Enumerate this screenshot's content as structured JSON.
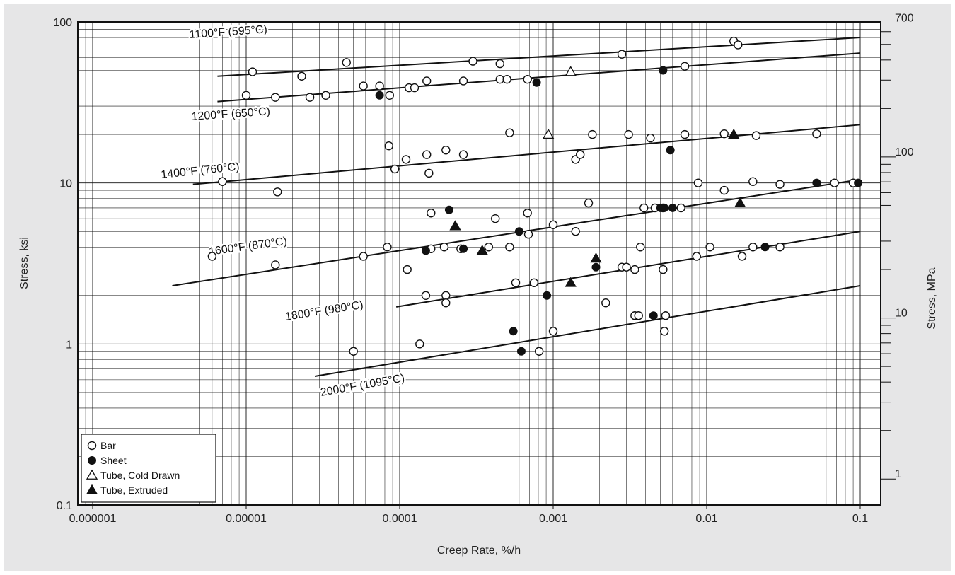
{
  "chart_data": {
    "type": "scatter",
    "xlabel": "Creep Rate, %/h",
    "ylabel": "Stress, ksi",
    "ylabel_right": "Stress, MPa",
    "x_scale": "log",
    "y_scale": "log",
    "xlim": [
      1e-06,
      0.12
    ],
    "ylim": [
      0.1,
      100
    ],
    "x_ticks": [
      {
        "value": 1e-06,
        "label": "0.000001"
      },
      {
        "value": 1e-05,
        "label": "0.00001"
      },
      {
        "value": 0.0001,
        "label": "0.0001"
      },
      {
        "value": 0.001,
        "label": "0.001"
      },
      {
        "value": 0.01,
        "label": "0.01"
      },
      {
        "value": 0.1,
        "label": "0.1"
      }
    ],
    "y_ticks": [
      {
        "value": 0.1,
        "label": "0.1"
      },
      {
        "value": 1,
        "label": "1"
      },
      {
        "value": 10,
        "label": "10"
      },
      {
        "value": 100,
        "label": "100"
      }
    ],
    "y_right_ticks": [
      {
        "value": 1,
        "label": "1"
      },
      {
        "value": 10,
        "label": "10"
      },
      {
        "value": 100,
        "label": "100"
      },
      {
        "value": 700,
        "label": "700"
      }
    ],
    "grid": true,
    "legend_position": "bottom-left",
    "legend": [
      {
        "label": "Bar",
        "marker": "open-circle"
      },
      {
        "label": "Sheet",
        "marker": "filled-circle"
      },
      {
        "label": "Tube, Cold Drawn",
        "marker": "open-triangle"
      },
      {
        "label": "Tube, Extruded",
        "marker": "filled-triangle"
      }
    ],
    "curves": [
      {
        "label": "1100°F (595°C)",
        "x": [
          6.5e-06,
          0.1
        ],
        "y": [
          46,
          80
        ]
      },
      {
        "label": "1200°F (650°C)",
        "x": [
          6.5e-06,
          0.1
        ],
        "y": [
          32,
          64
        ]
      },
      {
        "label": "1400°F (760°C)",
        "x": [
          4.5e-06,
          0.1
        ],
        "y": [
          9.8,
          23
        ]
      },
      {
        "label": "1600°F (870°C)",
        "x": [
          3.3e-06,
          0.1
        ],
        "y": [
          2.3,
          10.5
        ]
      },
      {
        "label": "1800°F (980°C)",
        "x": [
          9.5e-05,
          0.1
        ],
        "y": [
          1.7,
          5
        ]
      },
      {
        "label": "2000°F (1095°C)",
        "x": [
          2.8e-05,
          0.1
        ],
        "y": [
          0.63,
          2.3
        ]
      }
    ],
    "series": [
      {
        "name": "Bar",
        "marker": "open-circle",
        "x": [
          1.1e-05,
          2.3e-05,
          4.5e-05,
          0.0003,
          0.00045,
          0.0028,
          0.015,
          0.016,
          1e-05,
          1.55e-05,
          2.6e-05,
          3.3e-05,
          5.8e-05,
          7.4e-05,
          8.6e-05,
          0.000115,
          0.000125,
          0.00015,
          0.00026,
          0.00045,
          0.0005,
          0.00068,
          0.0072,
          7e-06,
          1.6e-05,
          8.5e-05,
          9.3e-05,
          0.00011,
          0.00015,
          0.000155,
          0.0002,
          0.00026,
          0.00052,
          0.0014,
          0.0015,
          0.0018,
          0.0031,
          0.0043,
          0.0072,
          0.013,
          0.021,
          0.052,
          6e-06,
          1.55e-05,
          5.8e-05,
          8.3e-05,
          0.000112,
          0.00016,
          0.00016,
          0.000195,
          0.00025,
          0.00038,
          0.00042,
          0.00052,
          0.00057,
          0.00068,
          0.00069,
          0.00075,
          0.001,
          0.0014,
          0.0017,
          0.0028,
          0.003,
          0.0034,
          0.0037,
          0.0039,
          0.0046,
          0.0052,
          0.0068,
          0.0086,
          0.0088,
          0.0105,
          0.013,
          0.017,
          0.02,
          0.02,
          0.03,
          0.03,
          0.068,
          0.09,
          0.000148,
          0.0002,
          0.0002,
          0.0052,
          5e-05,
          0.000135,
          0.00081,
          0.001,
          0.0022,
          0.0034,
          0.0036,
          0.0053,
          0.0054
        ],
        "y": [
          49,
          46,
          56,
          57,
          55,
          63,
          76,
          72,
          35,
          34,
          34,
          35,
          40,
          40,
          35,
          39,
          39,
          43,
          43,
          44,
          44,
          44,
          53,
          10.2,
          8.8,
          17,
          12.2,
          14,
          15,
          11.5,
          16,
          15,
          20.5,
          14,
          15,
          20,
          20,
          19,
          20,
          20.2,
          19.7,
          20.2,
          3.5,
          3.1,
          3.5,
          4,
          2.9,
          6.5,
          3.9,
          4,
          3.9,
          4,
          6,
          4,
          2.4,
          6.5,
          4.8,
          2.4,
          5.5,
          5,
          7.5,
          3,
          3,
          2.9,
          4,
          7,
          7,
          7,
          7,
          3.5,
          10,
          4,
          9,
          3.5,
          10.2,
          4,
          9.8,
          4,
          10,
          10,
          2,
          2,
          1.8,
          2.9,
          0.9,
          1,
          0.9,
          1.2,
          1.8,
          1.5,
          1.5,
          1.2,
          1.5
        ]
      },
      {
        "name": "Sheet",
        "marker": "filled-circle",
        "x": [
          0.0052,
          7.4e-05,
          0.00078,
          0.0058,
          0.00021,
          0.000148,
          0.00026,
          0.0006,
          0.005,
          0.0053,
          0.006,
          0.0019,
          0.024,
          0.052,
          0.097,
          0.00091,
          0.00055,
          0.00062,
          0.0045
        ],
        "y": [
          50,
          35,
          42,
          16,
          6.8,
          3.8,
          3.9,
          5,
          7,
          7,
          7,
          3,
          4,
          10,
          10,
          2,
          1.2,
          0.9,
          1.5
        ]
      },
      {
        "name": "Tube, Cold Drawn",
        "marker": "open-triangle",
        "x": [
          0.0013,
          0.00093
        ],
        "y": [
          49,
          20
        ]
      },
      {
        "name": "Tube, Extruded",
        "marker": "filled-triangle",
        "x": [
          0.015,
          0.0165,
          0.0019,
          0.00023,
          0.000345,
          0.0013
        ],
        "y": [
          20,
          7.5,
          3.4,
          5.4,
          3.8,
          2.4
        ]
      }
    ]
  }
}
